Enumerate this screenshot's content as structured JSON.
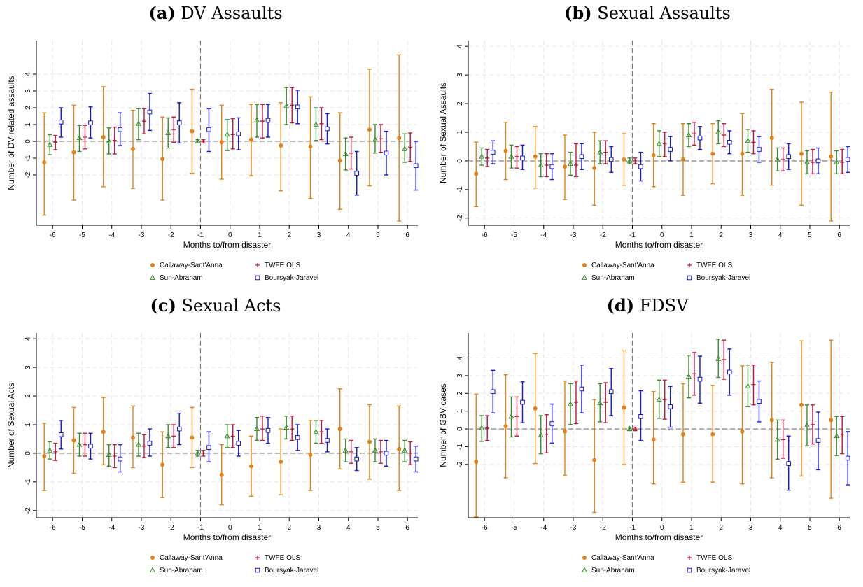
{
  "chart_data": [
    {
      "panel_letter": "(a)",
      "title": "DV Assaults",
      "type": "scatter",
      "xlabel": "Months to/from disaster",
      "ylabel": "Number of DV related assaults",
      "ylim": [
        -5,
        6
      ],
      "yticks": [
        -2,
        -1,
        0,
        1,
        2,
        3,
        4
      ],
      "x": [
        -6,
        -5,
        -4,
        -3,
        -2,
        -1,
        0,
        1,
        2,
        3,
        4,
        5,
        6
      ],
      "series": [
        {
          "name": "Callaway-Sant'Anna",
          "color": "#e08214",
          "marker": "circle",
          "values": [
            -1.25,
            -0.65,
            0.25,
            -0.45,
            -1.05,
            0.6,
            -0.05,
            0.1,
            -0.25,
            -0.3,
            -1.15,
            0.7,
            0.2
          ],
          "lower": [
            -4.4,
            -3.5,
            -2.7,
            -2.8,
            -3.5,
            -1.9,
            -2.25,
            -2.05,
            -2.95,
            -3.4,
            -4.05,
            -2.65,
            -4.75
          ],
          "upper": [
            1.7,
            2.15,
            3.25,
            1.85,
            1.45,
            3.1,
            2.15,
            2.2,
            2.3,
            2.65,
            1.7,
            4.3,
            5.15
          ]
        },
        {
          "name": "Sun-Abraham",
          "color": "#3a8a2a",
          "marker": "triangle",
          "values": [
            -0.2,
            0.2,
            0.0,
            1.05,
            0.5,
            0.0,
            0.4,
            1.25,
            2.1,
            1.0,
            -0.75,
            0.1,
            -0.45
          ],
          "lower": [
            -0.8,
            -0.6,
            -0.75,
            0.1,
            -0.4,
            -0.1,
            -0.55,
            0.25,
            1.0,
            0.05,
            -1.7,
            -0.7,
            -1.25
          ],
          "upper": [
            0.4,
            0.95,
            0.8,
            1.95,
            1.4,
            0.1,
            1.3,
            2.2,
            3.2,
            2.0,
            0.2,
            1.0,
            0.45
          ]
        },
        {
          "name": "TWFE OLS",
          "color": "#c0143c",
          "marker": "plus",
          "values": [
            -0.05,
            0.25,
            0.05,
            1.2,
            0.7,
            0.0,
            0.4,
            1.2,
            2.15,
            1.05,
            -0.7,
            0.15,
            -0.35
          ],
          "lower": [
            -0.5,
            -0.45,
            -0.75,
            0.45,
            -0.05,
            -0.1,
            -0.45,
            0.2,
            1.1,
            0.1,
            -1.65,
            -0.65,
            -1.2
          ],
          "upper": [
            0.35,
            0.95,
            0.85,
            1.95,
            1.45,
            0.1,
            1.35,
            2.2,
            3.2,
            2.0,
            0.25,
            1.0,
            0.5
          ]
        },
        {
          "name": "Boursyak-Jaravel",
          "color": "#1414dc",
          "marker": "square",
          "values": [
            1.15,
            1.1,
            0.7,
            1.75,
            1.1,
            0.7,
            0.45,
            1.25,
            2.05,
            0.75,
            -1.9,
            -0.7,
            -1.45
          ],
          "lower": [
            0.25,
            0.2,
            -0.25,
            0.65,
            -0.1,
            -0.6,
            -0.5,
            0.25,
            1.05,
            -0.15,
            -3.2,
            -2.0,
            -2.9
          ],
          "upper": [
            2.0,
            2.05,
            1.7,
            2.85,
            2.3,
            1.95,
            1.4,
            2.2,
            3.05,
            1.65,
            -0.6,
            0.6,
            0.0
          ]
        }
      ]
    },
    {
      "panel_letter": "(b)",
      "title": "Sexual Assaults",
      "type": "scatter",
      "xlabel": "Months to/from disaster",
      "ylabel": "Number of Sexual Assaults",
      "ylim": [
        -2.25,
        4.2
      ],
      "yticks": [
        -2,
        -1,
        0,
        1,
        2,
        3,
        4
      ],
      "x": [
        -6,
        -5,
        -4,
        -3,
        -2,
        -1,
        0,
        1,
        2,
        3,
        4,
        5,
        6
      ],
      "series": [
        {
          "name": "Callaway-Sant'Anna",
          "color": "#e08214",
          "marker": "circle",
          "values": [
            -0.45,
            0.35,
            0.15,
            -0.2,
            -0.25,
            0.05,
            0.2,
            0.05,
            0.25,
            0.25,
            0.8,
            0.25,
            0.15
          ],
          "lower": [
            -1.6,
            -0.65,
            -0.95,
            -1.35,
            -1.55,
            -0.85,
            -0.9,
            -1.2,
            -0.8,
            -1.2,
            -0.85,
            -1.55,
            -2.1
          ],
          "upper": [
            0.65,
            1.35,
            1.2,
            0.9,
            1.0,
            0.95,
            1.3,
            1.3,
            1.3,
            1.65,
            2.5,
            2.05,
            2.4
          ]
        },
        {
          "name": "Sun-Abraham",
          "color": "#3a8a2a",
          "marker": "triangle",
          "values": [
            0.15,
            0.15,
            -0.15,
            -0.1,
            0.3,
            0.0,
            0.6,
            0.9,
            1.0,
            0.7,
            0.05,
            -0.05,
            -0.05
          ],
          "lower": [
            -0.15,
            -0.25,
            -0.55,
            -0.5,
            -0.1,
            -0.1,
            0.15,
            0.5,
            0.6,
            0.3,
            -0.35,
            -0.45,
            -0.45
          ],
          "upper": [
            0.45,
            0.55,
            0.25,
            0.3,
            0.7,
            0.1,
            1.05,
            1.3,
            1.4,
            1.1,
            0.45,
            0.35,
            0.35
          ]
        },
        {
          "name": "TWFE OLS",
          "color": "#c0143c",
          "marker": "plus",
          "values": [
            0.1,
            0.15,
            -0.15,
            -0.15,
            0.3,
            0.0,
            0.6,
            0.95,
            0.9,
            0.65,
            0.05,
            -0.05,
            -0.05
          ],
          "lower": [
            -0.2,
            -0.25,
            -0.55,
            -0.55,
            -0.1,
            -0.1,
            0.15,
            0.55,
            0.5,
            0.25,
            -0.35,
            -0.45,
            -0.45
          ],
          "upper": [
            0.4,
            0.5,
            0.25,
            0.6,
            0.7,
            0.1,
            1.0,
            1.35,
            1.3,
            1.05,
            0.45,
            0.4,
            0.4
          ]
        },
        {
          "name": "Boursyak-Jaravel",
          "color": "#1414dc",
          "marker": "square",
          "values": [
            0.3,
            0.1,
            -0.2,
            0.15,
            0.05,
            -0.2,
            0.4,
            0.8,
            0.65,
            0.4,
            0.15,
            0.0,
            0.05
          ],
          "lower": [
            -0.1,
            -0.3,
            -0.65,
            -0.3,
            -0.4,
            -0.7,
            0.0,
            0.4,
            0.25,
            -0.05,
            -0.3,
            -0.45,
            -0.4
          ],
          "upper": [
            0.7,
            0.55,
            0.25,
            0.6,
            0.5,
            0.3,
            0.85,
            1.2,
            1.05,
            0.85,
            0.6,
            0.45,
            0.5
          ]
        }
      ]
    },
    {
      "panel_letter": "(c)",
      "title": "Sexual Acts",
      "type": "scatter",
      "xlabel": "Months to/from disaster",
      "ylabel": "Number of Sexual Acts",
      "ylim": [
        -2.25,
        4.2
      ],
      "yticks": [
        -2,
        -1,
        0,
        1,
        2,
        3,
        4
      ],
      "x": [
        -6,
        -5,
        -4,
        -3,
        -2,
        -1,
        0,
        1,
        2,
        3,
        4,
        5,
        6
      ],
      "series": [
        {
          "name": "Callaway-Sant'Anna",
          "color": "#e08214",
          "marker": "circle",
          "values": [
            -0.1,
            0.45,
            0.75,
            0.55,
            -0.4,
            0.55,
            -0.75,
            -0.45,
            -0.3,
            -0.05,
            0.85,
            0.4,
            0.15
          ],
          "lower": [
            -1.3,
            -0.7,
            -0.4,
            -0.5,
            -1.55,
            -0.5,
            -1.8,
            -1.5,
            -1.45,
            -1.3,
            -0.55,
            -0.9,
            -1.3
          ],
          "upper": [
            1.05,
            1.6,
            1.95,
            1.65,
            0.75,
            1.6,
            0.3,
            0.6,
            0.85,
            1.15,
            2.25,
            1.7,
            1.65
          ]
        },
        {
          "name": "Sun-Abraham",
          "color": "#3a8a2a",
          "marker": "triangle",
          "values": [
            0.1,
            0.3,
            -0.05,
            0.3,
            0.6,
            0.0,
            0.6,
            0.85,
            0.9,
            0.75,
            0.1,
            0.1,
            0.1
          ],
          "lower": [
            -0.2,
            -0.1,
            -0.45,
            -0.1,
            0.2,
            -0.1,
            0.2,
            0.45,
            0.5,
            0.35,
            -0.3,
            -0.3,
            -0.3
          ],
          "upper": [
            0.4,
            0.7,
            0.3,
            0.7,
            1.0,
            0.1,
            1.0,
            1.25,
            1.3,
            1.15,
            0.5,
            0.5,
            0.45
          ]
        },
        {
          "name": "TWFE OLS",
          "color": "#c0143c",
          "marker": "plus",
          "values": [
            0.05,
            0.3,
            -0.1,
            0.25,
            0.6,
            0.0,
            0.6,
            0.85,
            0.85,
            0.75,
            0.05,
            0.05,
            0.0
          ],
          "lower": [
            -0.25,
            -0.1,
            -0.5,
            -0.15,
            0.2,
            -0.1,
            0.2,
            0.45,
            0.45,
            0.35,
            -0.35,
            -0.35,
            -0.4
          ],
          "upper": [
            0.35,
            0.7,
            0.3,
            0.65,
            1.0,
            0.1,
            1.0,
            1.3,
            1.3,
            1.15,
            0.45,
            0.45,
            0.4
          ]
        },
        {
          "name": "Boursyak-Jaravel",
          "color": "#1414dc",
          "marker": "square",
          "values": [
            0.65,
            0.25,
            -0.2,
            0.35,
            0.85,
            0.2,
            0.35,
            0.8,
            0.55,
            0.45,
            -0.2,
            0.0,
            -0.2
          ],
          "lower": [
            0.15,
            -0.2,
            -0.65,
            -0.1,
            0.3,
            -0.3,
            -0.1,
            0.35,
            0.1,
            0.05,
            -0.6,
            -0.45,
            -0.65
          ],
          "upper": [
            1.15,
            0.7,
            0.3,
            0.85,
            1.4,
            0.75,
            0.8,
            1.25,
            1.0,
            0.85,
            0.2,
            0.45,
            0.25
          ]
        }
      ]
    },
    {
      "panel_letter": "(d)",
      "title": "FDSV",
      "type": "scatter",
      "xlabel": "Months to/from disaster",
      "ylabel": "Number of GBV cases",
      "ylim": [
        -5,
        5.4
      ],
      "yticks": [
        -2,
        -1,
        0,
        1,
        2,
        3,
        4
      ],
      "x": [
        -6,
        -5,
        -4,
        -3,
        -2,
        -1,
        0,
        1,
        2,
        3,
        4,
        5,
        6
      ],
      "series": [
        {
          "name": "Callaway-Sant'Anna",
          "color": "#e08214",
          "marker": "circle",
          "values": [
            -1.85,
            0.15,
            1.15,
            -0.15,
            -1.75,
            1.2,
            -0.6,
            -0.3,
            -0.3,
            -0.15,
            0.5,
            1.35,
            0.5
          ],
          "lower": [
            -4.95,
            -2.75,
            -1.95,
            -2.6,
            -4.7,
            -2.0,
            -3.1,
            -3.0,
            -3.0,
            -3.1,
            -2.75,
            -2.65,
            -3.9
          ],
          "upper": [
            1.95,
            3.05,
            4.25,
            2.7,
            1.65,
            4.4,
            2.1,
            2.55,
            2.45,
            3.55,
            3.75,
            4.95,
            5.0
          ]
        },
        {
          "name": "Sun-Abraham",
          "color": "#3a8a2a",
          "marker": "triangle",
          "values": [
            0.05,
            0.7,
            -0.35,
            1.4,
            1.45,
            0.0,
            1.65,
            2.95,
            3.95,
            2.4,
            -0.6,
            0.2,
            -0.4
          ],
          "lower": [
            -0.7,
            -0.45,
            -1.4,
            0.25,
            0.4,
            -0.1,
            0.6,
            1.75,
            2.9,
            1.25,
            -1.7,
            -0.95,
            -1.5
          ],
          "upper": [
            0.75,
            1.8,
            0.75,
            2.55,
            2.55,
            0.1,
            2.75,
            4.15,
            5.05,
            3.6,
            0.5,
            1.35,
            0.7
          ]
        },
        {
          "name": "TWFE OLS",
          "color": "#c0143c",
          "marker": "plus",
          "values": [
            0.05,
            0.7,
            -0.3,
            1.5,
            1.5,
            0.0,
            1.65,
            3.1,
            3.9,
            2.5,
            -0.6,
            0.25,
            -0.3
          ],
          "lower": [
            -0.65,
            -0.4,
            -1.35,
            0.3,
            0.35,
            -0.1,
            0.55,
            1.9,
            2.8,
            1.35,
            -1.65,
            -0.85,
            -1.4
          ],
          "upper": [
            0.75,
            1.8,
            0.8,
            2.7,
            2.6,
            0.1,
            2.75,
            4.3,
            5.0,
            3.6,
            0.5,
            1.35,
            0.7
          ]
        },
        {
          "name": "Boursyak-Jaravel",
          "color": "#1414dc",
          "marker": "square",
          "values": [
            2.1,
            1.5,
            0.3,
            2.25,
            2.1,
            0.7,
            1.25,
            2.8,
            3.2,
            1.55,
            -1.95,
            -0.65,
            -1.65
          ],
          "lower": [
            0.9,
            0.35,
            -0.8,
            0.9,
            0.75,
            -0.65,
            0.1,
            1.45,
            1.9,
            0.4,
            -3.45,
            -2.3,
            -3.15
          ],
          "upper": [
            3.3,
            2.65,
            1.4,
            3.6,
            3.4,
            2.15,
            2.4,
            4.1,
            4.5,
            2.7,
            -0.4,
            0.95,
            -0.15
          ]
        }
      ]
    }
  ]
}
